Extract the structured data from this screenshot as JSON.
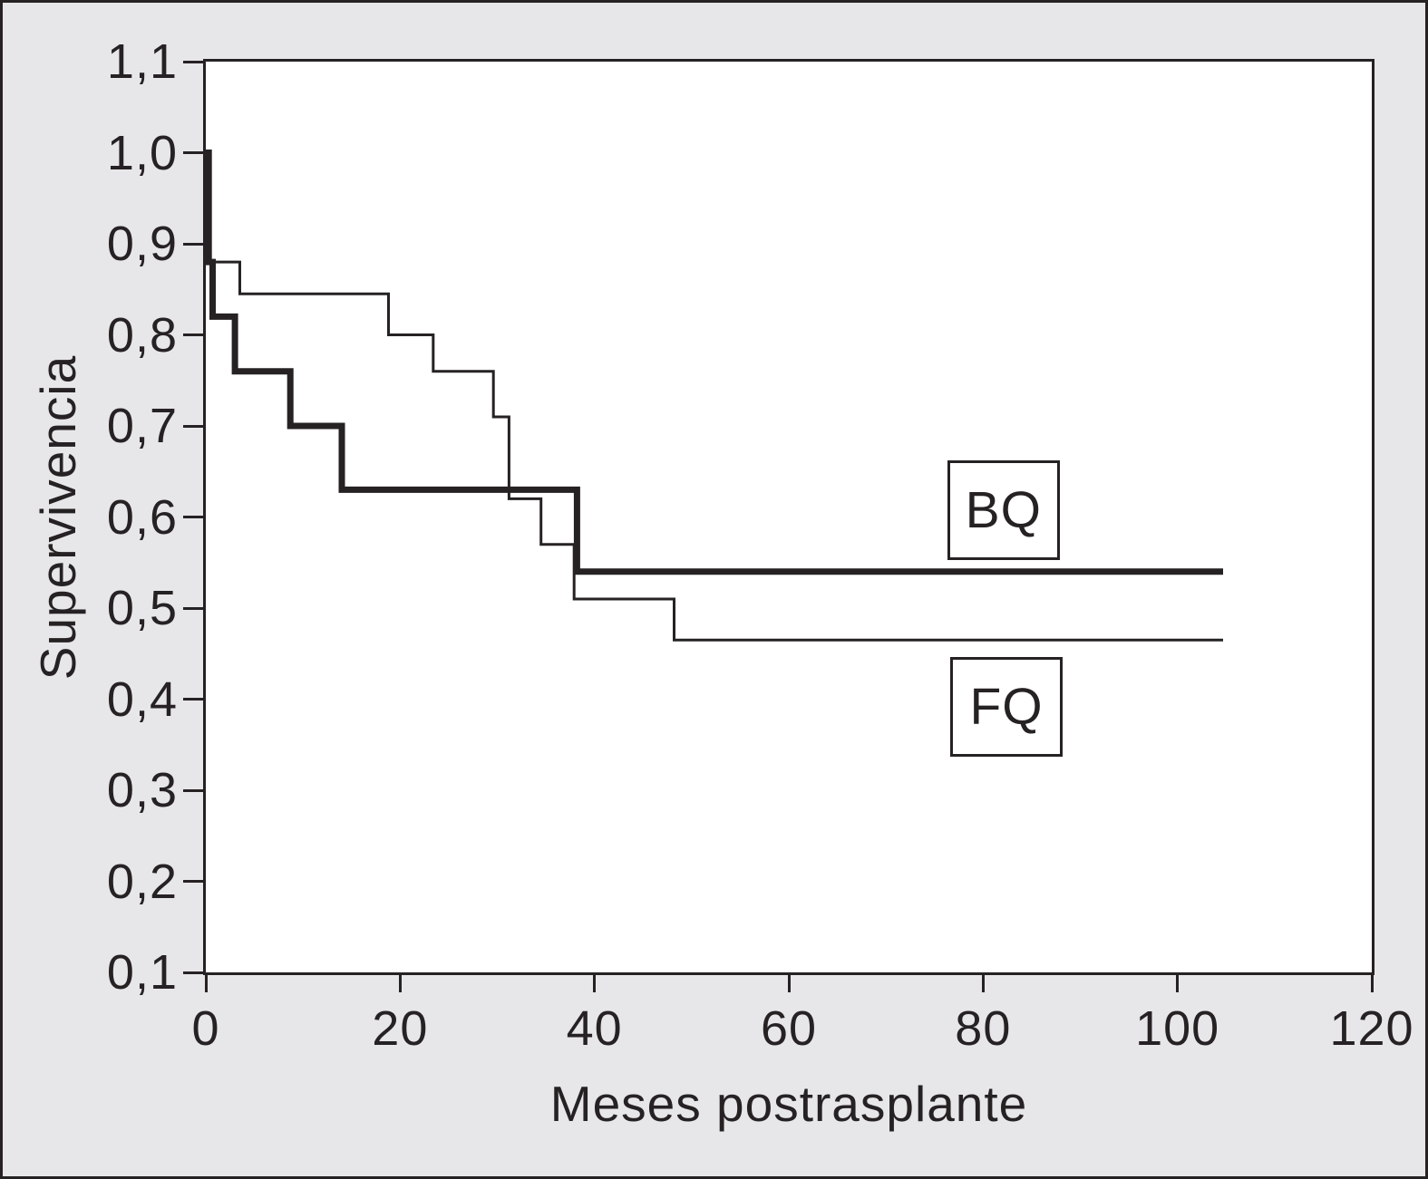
{
  "axes": {
    "x_title": "Meses postrasplante",
    "y_title": "Supervivencia"
  },
  "labels": {
    "bq": "BQ",
    "fq": "FQ"
  },
  "colors": {
    "ink": "#262223",
    "figure_background": "#e7e6e8",
    "plot_background": "#ffffff"
  },
  "chart_data": {
    "type": "line",
    "subtype": "kaplan-meier-step",
    "title": "",
    "xlabel": "Meses postrasplante",
    "ylabel": "Supervivencia",
    "xlim": [
      0,
      120
    ],
    "ylim": [
      0.1,
      1.1
    ],
    "x_ticks": [
      0,
      20,
      40,
      60,
      80,
      100,
      120
    ],
    "y_ticks": [
      1.1,
      1.0,
      0.9,
      0.8,
      0.7,
      0.6,
      0.5,
      0.4,
      0.3,
      0.2,
      0.1
    ],
    "y_tick_labels": [
      "1,1",
      "1,0",
      "0,9",
      "0,8",
      "0,7",
      "0,6",
      "0,5",
      "0,4",
      "0,3",
      "0,2",
      "0,1"
    ],
    "decimal_separator": ",",
    "grid": false,
    "legend_position": "boxed-annotations-inside-plot",
    "series": [
      {
        "name": "FQ",
        "style": "thin",
        "stroke_width": 3,
        "points": [
          [
            0,
            1.0
          ],
          [
            0.2,
            1.0
          ],
          [
            0.2,
            0.88
          ],
          [
            3.5,
            0.88
          ],
          [
            3.5,
            0.845
          ],
          [
            18.8,
            0.845
          ],
          [
            18.8,
            0.8
          ],
          [
            23.4,
            0.8
          ],
          [
            23.4,
            0.76
          ],
          [
            29.6,
            0.76
          ],
          [
            29.6,
            0.71
          ],
          [
            31.2,
            0.71
          ],
          [
            31.2,
            0.62
          ],
          [
            34.5,
            0.62
          ],
          [
            34.5,
            0.57
          ],
          [
            37.9,
            0.57
          ],
          [
            37.9,
            0.51
          ],
          [
            48.2,
            0.51
          ],
          [
            48.2,
            0.465
          ],
          [
            104.7,
            0.465
          ]
        ]
      },
      {
        "name": "BQ",
        "style": "thick",
        "stroke_width": 7,
        "points": [
          [
            0,
            1.0
          ],
          [
            0.3,
            1.0
          ],
          [
            0.3,
            0.88
          ],
          [
            0.7,
            0.88
          ],
          [
            0.7,
            0.82
          ],
          [
            3.0,
            0.82
          ],
          [
            3.0,
            0.76
          ],
          [
            8.7,
            0.76
          ],
          [
            8.7,
            0.7
          ],
          [
            14.0,
            0.7
          ],
          [
            14.0,
            0.63
          ],
          [
            38.2,
            0.63
          ],
          [
            38.2,
            0.54
          ],
          [
            104.7,
            0.54
          ]
        ]
      }
    ],
    "annotations": [
      {
        "label": "BQ",
        "x_months": 82.1,
        "y_value": 0.607
      },
      {
        "label": "FQ",
        "x_months": 82.4,
        "y_value": 0.392
      }
    ]
  }
}
